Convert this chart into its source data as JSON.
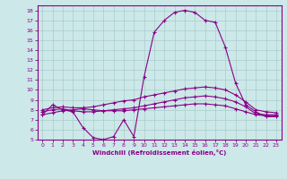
{
  "xlabel": "Windchill (Refroidissement éolien,°C)",
  "background_color": "#cce8e8",
  "grid_color": "#aacccc",
  "line_color": "#880088",
  "xlim": [
    -0.5,
    23.5
  ],
  "ylim": [
    5,
    18.5
  ],
  "yticks": [
    5,
    6,
    7,
    8,
    9,
    10,
    11,
    12,
    13,
    14,
    15,
    16,
    17,
    18
  ],
  "xticks": [
    0,
    1,
    2,
    3,
    4,
    5,
    6,
    7,
    8,
    9,
    10,
    11,
    12,
    13,
    14,
    15,
    16,
    17,
    18,
    19,
    20,
    21,
    22,
    23
  ],
  "series": {
    "line1_x": [
      0,
      1,
      2,
      3,
      4,
      5,
      6,
      7,
      8,
      9,
      10,
      11,
      12,
      13,
      14,
      15,
      16,
      17,
      18,
      19,
      20,
      21,
      22,
      23
    ],
    "line1_y": [
      7.5,
      8.5,
      8.0,
      7.8,
      6.2,
      5.2,
      5.0,
      5.3,
      7.0,
      5.3,
      11.3,
      15.8,
      17.0,
      17.8,
      18.0,
      17.8,
      17.0,
      16.8,
      14.3,
      10.7,
      8.5,
      7.8,
      7.3,
      7.3
    ],
    "line2_x": [
      0,
      1,
      2,
      3,
      4,
      5,
      6,
      7,
      8,
      9,
      10,
      11,
      12,
      13,
      14,
      15,
      16,
      17,
      18,
      19,
      20,
      21,
      22,
      23
    ],
    "line2_y": [
      8.0,
      8.2,
      8.3,
      8.2,
      8.2,
      8.3,
      8.5,
      8.7,
      8.9,
      9.0,
      9.3,
      9.5,
      9.7,
      9.9,
      10.1,
      10.2,
      10.3,
      10.2,
      10.0,
      9.5,
      8.8,
      8.0,
      7.8,
      7.7
    ],
    "line3_x": [
      0,
      1,
      2,
      3,
      4,
      5,
      6,
      7,
      8,
      9,
      10,
      11,
      12,
      13,
      14,
      15,
      16,
      17,
      18,
      19,
      20,
      21,
      22,
      23
    ],
    "line3_y": [
      7.8,
      8.0,
      8.1,
      7.9,
      7.8,
      7.8,
      7.9,
      8.0,
      8.1,
      8.2,
      8.4,
      8.6,
      8.8,
      9.0,
      9.2,
      9.3,
      9.4,
      9.3,
      9.1,
      8.8,
      8.3,
      7.6,
      7.5,
      7.5
    ],
    "line4_x": [
      0,
      1,
      2,
      3,
      4,
      5,
      6,
      7,
      8,
      9,
      10,
      11,
      12,
      13,
      14,
      15,
      16,
      17,
      18,
      19,
      20,
      21,
      22,
      23
    ],
    "line4_y": [
      7.5,
      7.7,
      7.9,
      8.0,
      8.1,
      8.0,
      7.9,
      7.9,
      7.9,
      8.0,
      8.1,
      8.2,
      8.3,
      8.4,
      8.5,
      8.6,
      8.6,
      8.5,
      8.4,
      8.1,
      7.8,
      7.5,
      7.4,
      7.4
    ]
  }
}
